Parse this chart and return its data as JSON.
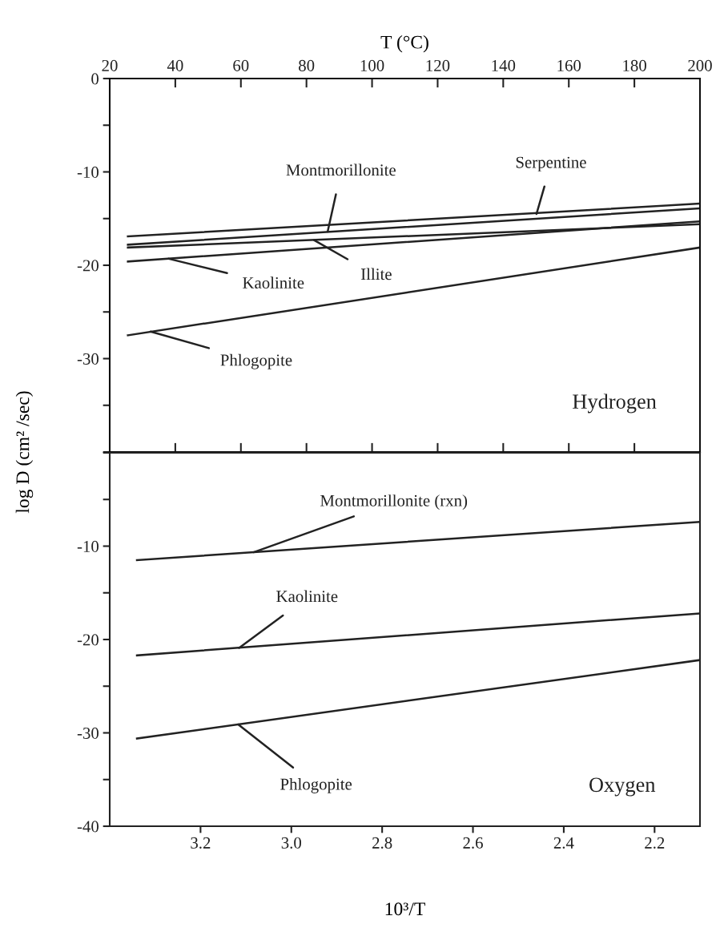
{
  "chart_data": [
    {
      "type": "line",
      "x2label": "T (°C)",
      "ylabel": "log D (cm² /sec)",
      "xlim": [
        3.4,
        2.1
      ],
      "ylim": [
        -40,
        0
      ],
      "yticks": [
        0,
        {
          "value": -5,
          "label": null
        },
        -10,
        {
          "value": -15,
          "label": null
        },
        -20,
        {
          "value": -25,
          "label": null
        },
        -30,
        {
          "value": -35,
          "label": null
        },
        {
          "value": -40,
          "label": null
        }
      ],
      "x2lim": [
        20,
        200
      ],
      "x2ticks": [
        20,
        40,
        60,
        80,
        100,
        120,
        140,
        160,
        180,
        200
      ],
      "tick_labels": "y",
      "marker": "none",
      "line_style": "solid",
      "series": [
        {
          "color": "#222222",
          "x": [
            3.36,
            2.1
          ],
          "values": [
            -16.9,
            -13.4
          ]
        },
        {
          "color": "#222222",
          "x": [
            3.36,
            2.1
          ],
          "values": [
            -17.8,
            -13.9
          ]
        },
        {
          "color": "#222222",
          "x": [
            3.36,
            2.1
          ],
          "values": [
            -18.1,
            -15.6
          ]
        },
        {
          "color": "#222222",
          "x": [
            3.36,
            2.1
          ],
          "values": [
            -19.6,
            -15.3
          ]
        },
        {
          "color": "#222222",
          "x": [
            3.36,
            2.1
          ],
          "values": [
            -27.5,
            -18.1
          ]
        }
      ],
      "annotations": [
        {
          "text": "Serpentine",
          "x": 2.46,
          "y": -14.5
        },
        {
          "text": "Montmorillonite",
          "x": 2.92,
          "y": -16.4
        },
        {
          "text": "Illite",
          "x": 2.95,
          "y": -17.3
        },
        {
          "text": "Kaolinite",
          "x": 3.27,
          "y": -19.3
        },
        {
          "text": "Phlogopite",
          "x": 3.31,
          "y": -27.1
        },
        "Hydrogen"
      ]
    },
    {
      "type": "line",
      "xlabel": "10³/T",
      "xlim": [
        3.4,
        2.1
      ],
      "ylim": [
        -40,
        0
      ],
      "xticks": [
        3.2,
        {
          "value": 3.0,
          "label": "3.0"
        },
        2.8,
        2.6,
        2.4,
        2.2
      ],
      "yticks": [
        {
          "value": 0,
          "label": null
        },
        {
          "value": -5,
          "label": null
        },
        -10,
        {
          "value": -15,
          "label": null
        },
        -20,
        {
          "value": -25,
          "label": null
        },
        -30,
        {
          "value": -35,
          "label": null
        },
        -40
      ],
      "marker": "none",
      "line_style": "solid",
      "series": [
        {
          "color": "#222222",
          "x": [
            3.34,
            2.1
          ],
          "values": [
            -11.5,
            -7.4
          ]
        },
        {
          "color": "#222222",
          "x": [
            3.34,
            2.1
          ],
          "values": [
            -21.7,
            -17.2
          ]
        },
        {
          "color": "#222222",
          "x": [
            3.34,
            2.1
          ],
          "values": [
            -30.6,
            -22.2
          ]
        }
      ],
      "annotations": [
        {
          "text": "Montmorillonite (rxn)",
          "x": 3.083,
          "y": -10.65
        },
        {
          "text": "Kaolinite",
          "x": 3.115,
          "y": -20.9
        },
        {
          "text": "Phlogopite",
          "x": 3.117,
          "y": -29.1
        },
        "Oxygen"
      ]
    }
  ]
}
